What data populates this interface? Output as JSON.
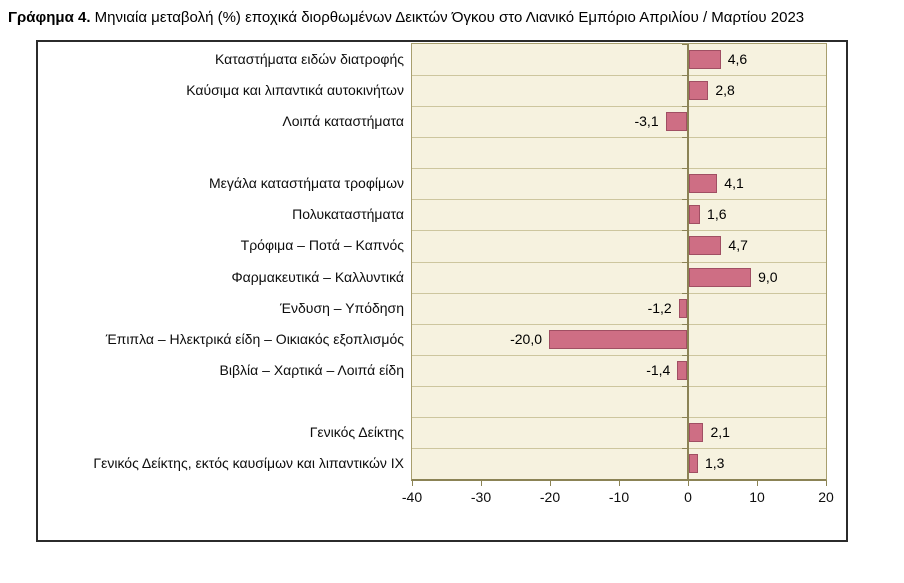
{
  "title": {
    "prefix": "Γράφημα 4.",
    "text": " Μηνιαία μεταβολή (%) εποχικά διορθωμένων Δεικτών Όγκου στο Λιανικό Εμπόριο Απριλίου / Μαρτίου 2023"
  },
  "colors": {
    "bar_fill": "#ce6e84",
    "bar_border": "#a04f63",
    "plot_background": "#f6f2df",
    "gridline": "#cdc69e",
    "axis_line": "#8b8355",
    "frame_border": "#2b2b2b"
  },
  "chart_data": {
    "type": "bar",
    "orientation": "horizontal",
    "title": "Γράφημα 4. Μηνιαία μεταβολή (%) εποχικά διορθωμένων Δεικτών Όγκου στο Λιανικό Εμπόριο Απριλίου / Μαρτίου 2023",
    "xlabel": "",
    "ylabel": "",
    "xlim": [
      -40,
      20
    ],
    "x_ticks": [
      -40,
      -30,
      -20,
      -10,
      0,
      10,
      20
    ],
    "grid": true,
    "decimal_separator": ",",
    "rows": [
      {
        "label": "Καταστήματα ειδών διατροφής",
        "value": 4.6,
        "display": "4,6"
      },
      {
        "label": "Καύσιμα και λιπαντικά αυτοκινήτων",
        "value": 2.8,
        "display": "2,8"
      },
      {
        "label": "Λοιπά καταστήματα",
        "value": -3.1,
        "display": "-3,1"
      },
      {
        "label": "",
        "value": null,
        "display": ""
      },
      {
        "label": "Μεγάλα καταστήματα τροφίμων",
        "value": 4.1,
        "display": "4,1"
      },
      {
        "label": "Πολυκαταστήματα",
        "value": 1.6,
        "display": "1,6"
      },
      {
        "label": "Τρόφιμα – Ποτά – Καπνός",
        "value": 4.7,
        "display": "4,7"
      },
      {
        "label": "Φαρμακευτικά – Καλλυντικά",
        "value": 9.0,
        "display": "9,0"
      },
      {
        "label": "Ένδυση – Υπόδηση",
        "value": -1.2,
        "display": "-1,2"
      },
      {
        "label": "Έπιπλα – Ηλεκτρικά είδη – Οικιακός εξοπλισμός",
        "value": -20.0,
        "display": "-20,0"
      },
      {
        "label": "Βιβλία – Χαρτικά – Λοιπά είδη",
        "value": -1.4,
        "display": "-1,4"
      },
      {
        "label": "",
        "value": null,
        "display": ""
      },
      {
        "label": "Γενικός Δείκτης",
        "value": 2.1,
        "display": "2,1"
      },
      {
        "label": "Γενικός Δείκτης, εκτός καυσίμων και λιπαντικών ΙΧ",
        "value": 1.3,
        "display": "1,3"
      }
    ]
  }
}
